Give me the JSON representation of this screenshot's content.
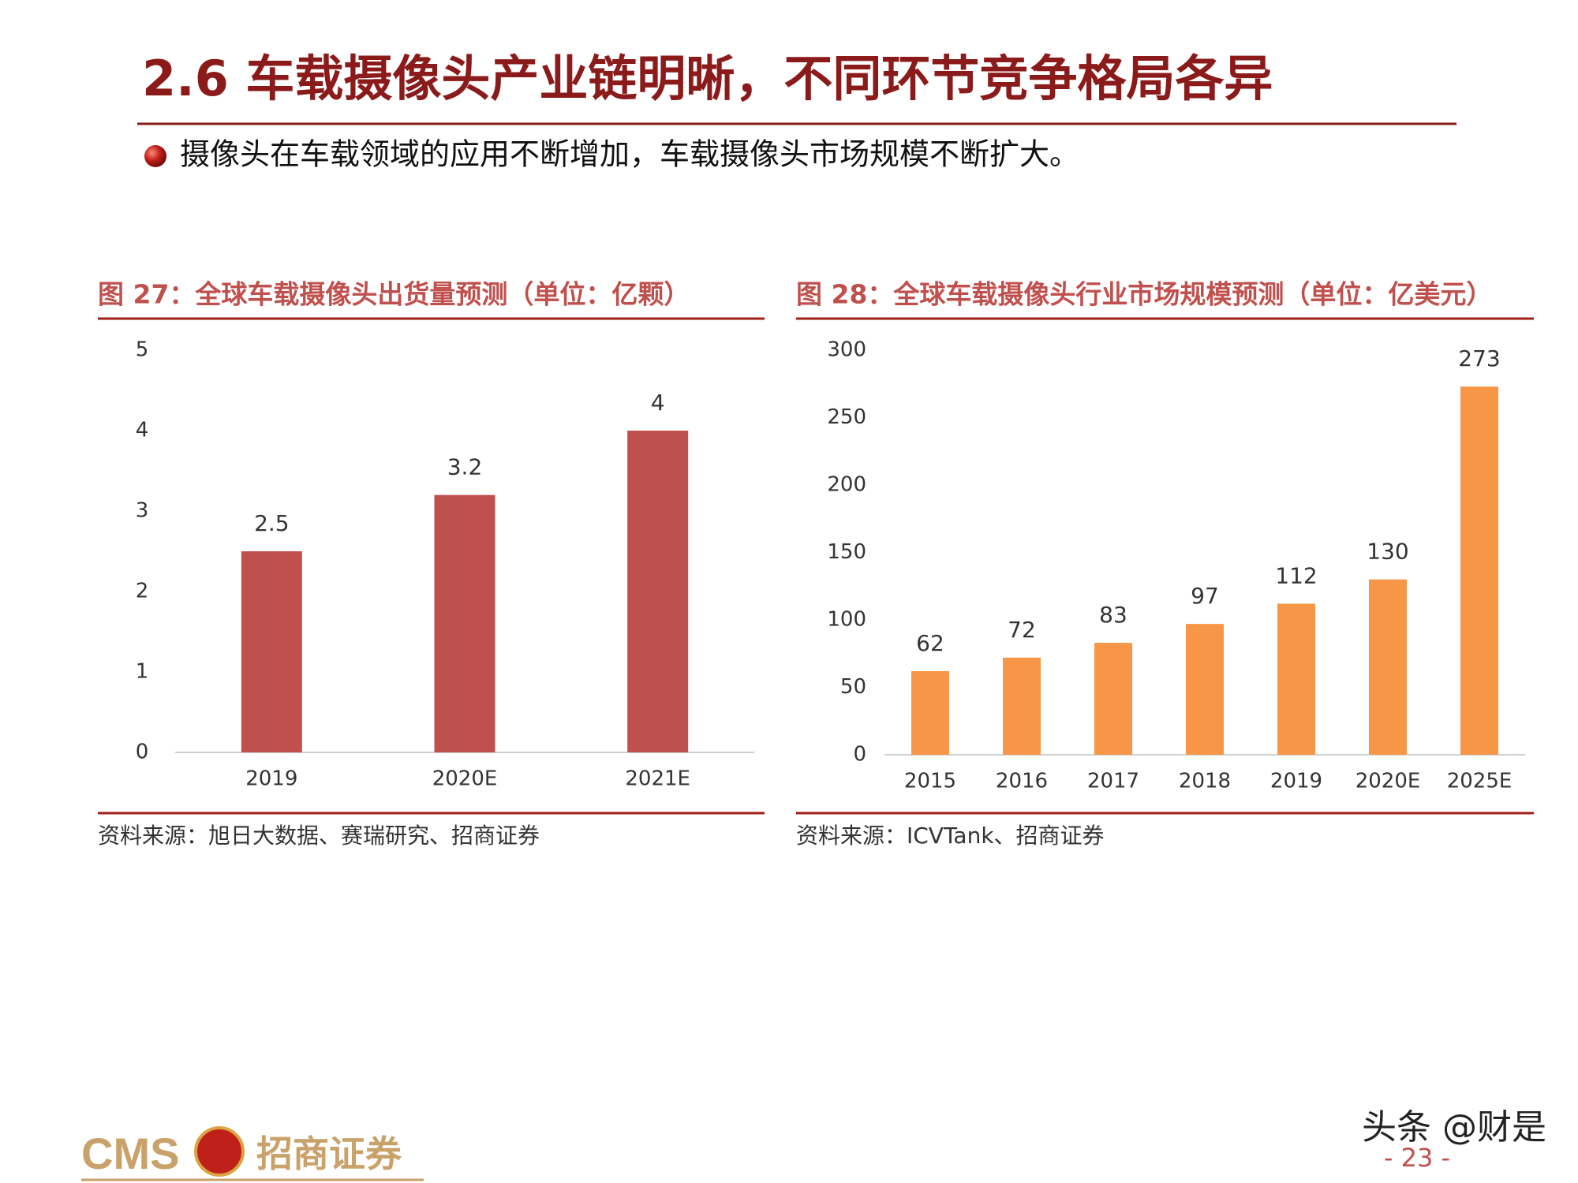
{
  "header": {
    "title": "2.6  车载摄像头产业链明晰，不同环节竞争格局各异",
    "bullet": "摄像头在车载领域的应用不断增加，车载摄像头市场规模不断扩大。"
  },
  "chart_data": [
    {
      "type": "bar",
      "title": "图 27：全球车载摄像头出货量预测（单位：亿颗）",
      "categories": [
        "2019",
        "2020E",
        "2021E"
      ],
      "values": [
        2.5,
        3.2,
        4
      ],
      "color": "#c0504d",
      "ylim": [
        0,
        5
      ],
      "yticks": [
        0,
        1,
        2,
        3,
        4,
        5
      ],
      "source": "资料来源：旭日大数据、赛瑞研究、招商证券"
    },
    {
      "type": "bar",
      "title": "图 28：全球车载摄像头行业市场规模预测（单位：亿美元）",
      "categories": [
        "2015",
        "2016",
        "2017",
        "2018",
        "2019",
        "2020E",
        "2025E"
      ],
      "values": [
        62,
        72,
        83,
        97,
        112,
        130,
        273
      ],
      "color": "#f79646",
      "ylim": [
        0,
        300
      ],
      "yticks": [
        0,
        50,
        100,
        150,
        200,
        250,
        300
      ],
      "source": "资料来源：ICVTank、招商证券"
    }
  ],
  "footer": {
    "logo": "CMS",
    "company": "招商证券",
    "page": "- 23 -",
    "watermark": "头条 @财是"
  }
}
